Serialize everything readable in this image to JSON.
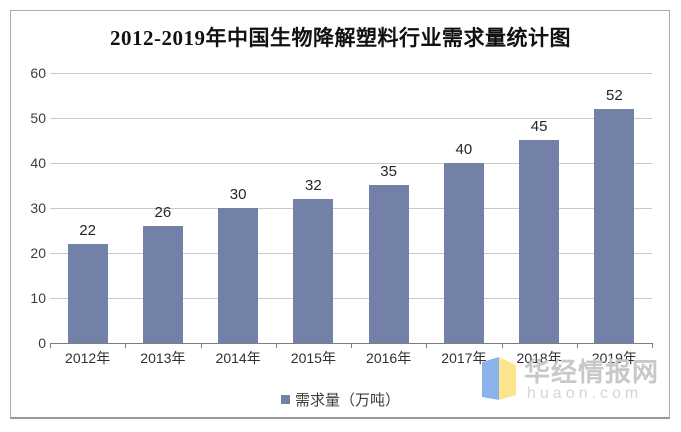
{
  "chart_data": {
    "type": "bar",
    "title": "2012-2019年中国生物降解塑料行业需求量统计图",
    "categories": [
      "2012年",
      "2013年",
      "2014年",
      "2015年",
      "2016年",
      "2017年",
      "2018年",
      "2019年"
    ],
    "series": [
      {
        "name": "需求量（万吨）",
        "values": [
          22,
          26,
          30,
          32,
          35,
          40,
          45,
          52
        ]
      }
    ],
    "xlabel": "",
    "ylabel": "",
    "ylim": [
      0,
      60
    ],
    "yticks": [
      0,
      10,
      20,
      30,
      40,
      50,
      60
    ],
    "grid": true,
    "legend_position": "bottom",
    "bar_color": "#7380a7",
    "gridline_color": "#c9c9c9",
    "axis_color": "#7d7d7d"
  },
  "legend": {
    "label": "需求量（万吨）"
  },
  "watermark": {
    "name_cn": "华经情报网",
    "domain": "huaon.com",
    "logo_blue": "#8ab4eb",
    "logo_yellow": "#fae48c"
  }
}
